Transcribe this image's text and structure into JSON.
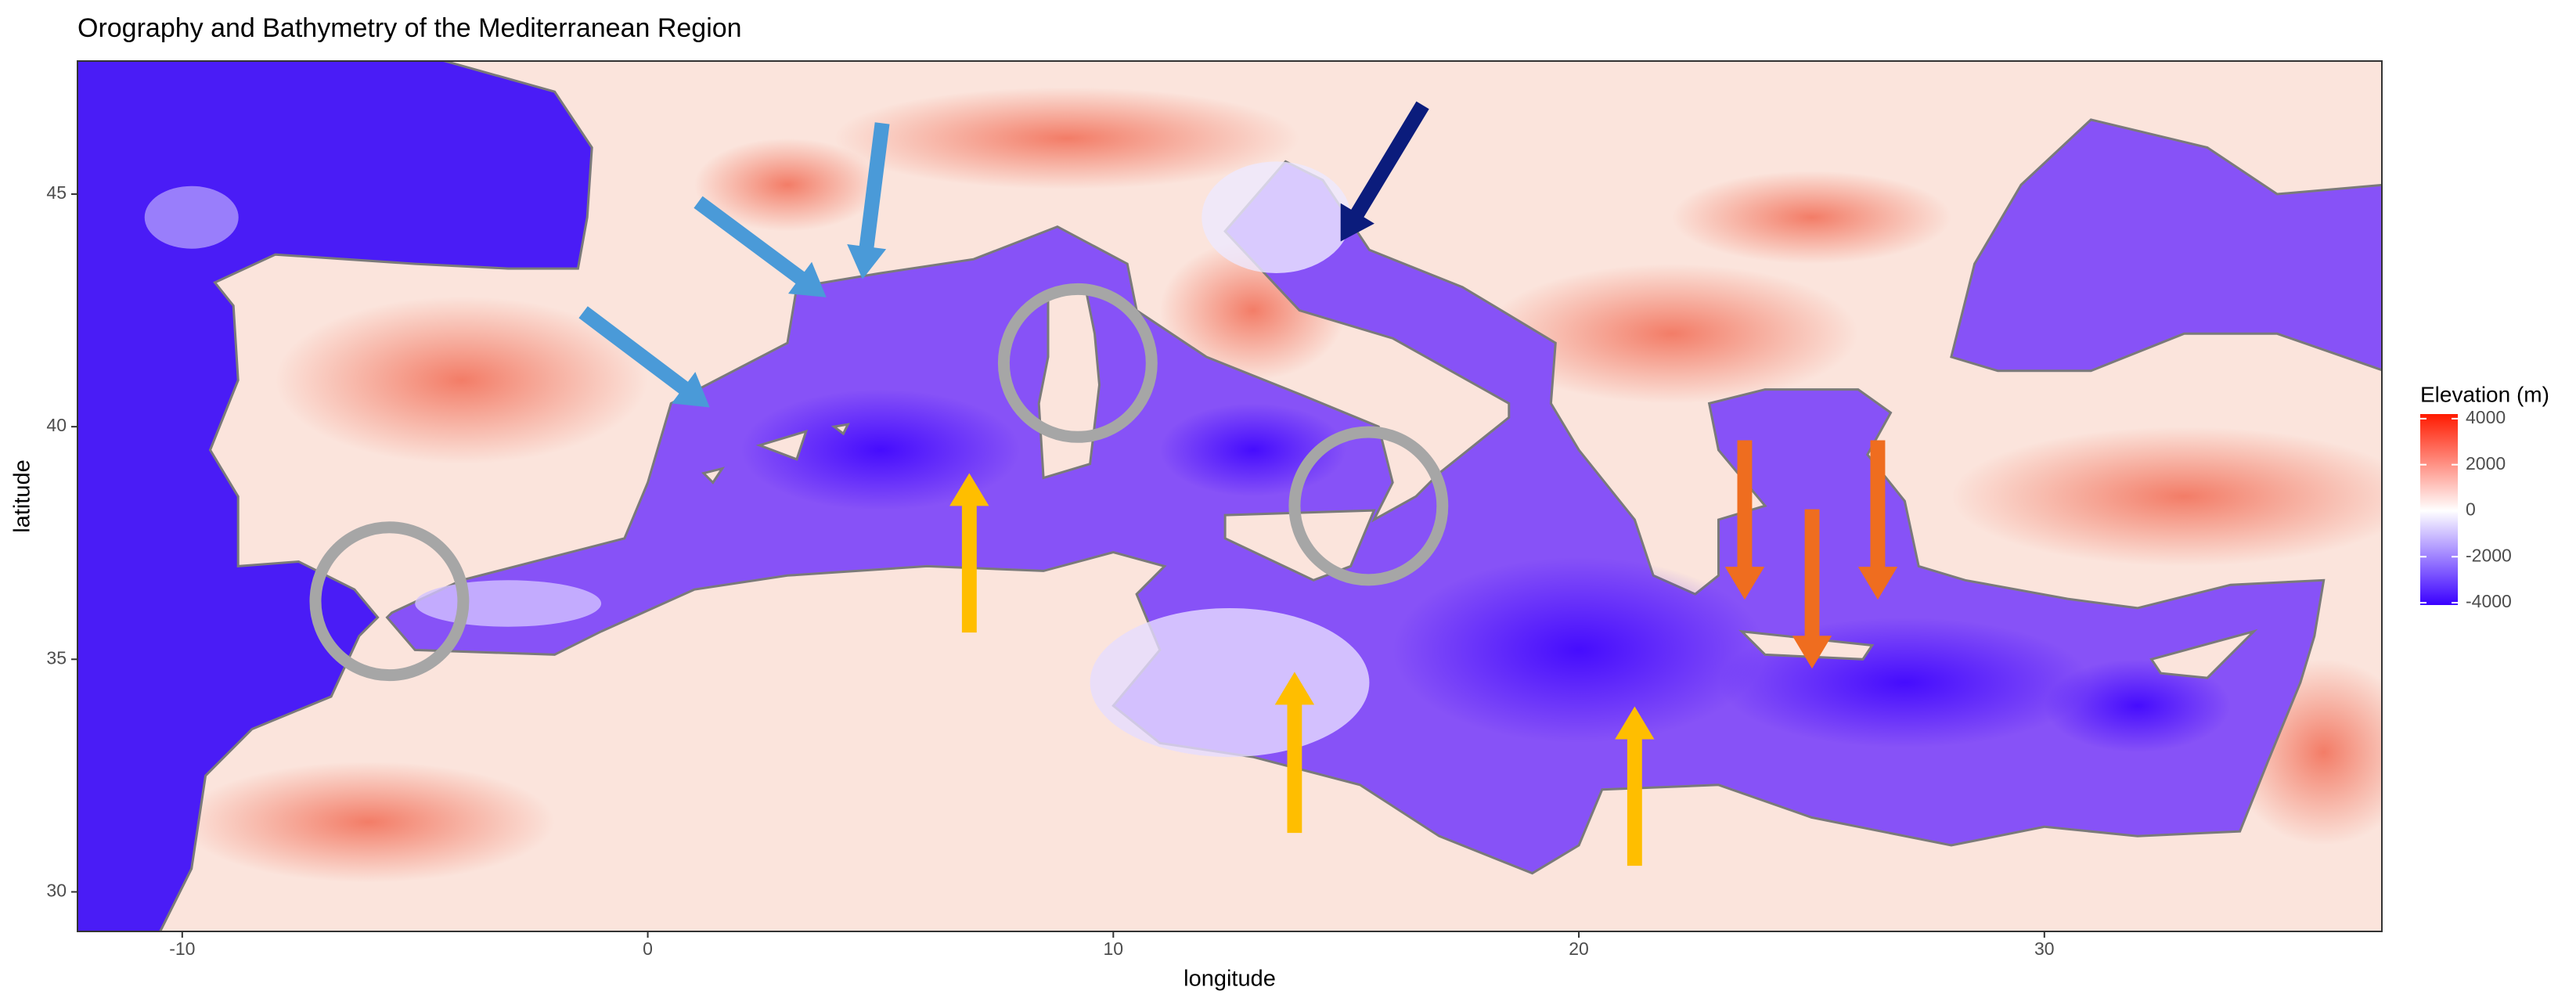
{
  "chart_data": {
    "type": "map",
    "title": "Orography and Bathymetry of the Mediterranean Region",
    "x_label": "longitude",
    "y_label": "latitude",
    "xlim": [
      -12.25,
      37.25
    ],
    "ylim": [
      29.15,
      47.86
    ],
    "xticks": [
      -10,
      0,
      10,
      20,
      30
    ],
    "yticks": [
      30,
      35,
      40,
      45
    ],
    "legend": {
      "title": "Elevation (m)",
      "lim": [
        -4100,
        4200
      ],
      "ticks": [
        4000,
        2000,
        0,
        -2000,
        -4000
      ],
      "colors": [
        "#3a00ff",
        "#ffffff",
        "#ff1a00"
      ]
    }
  }
}
